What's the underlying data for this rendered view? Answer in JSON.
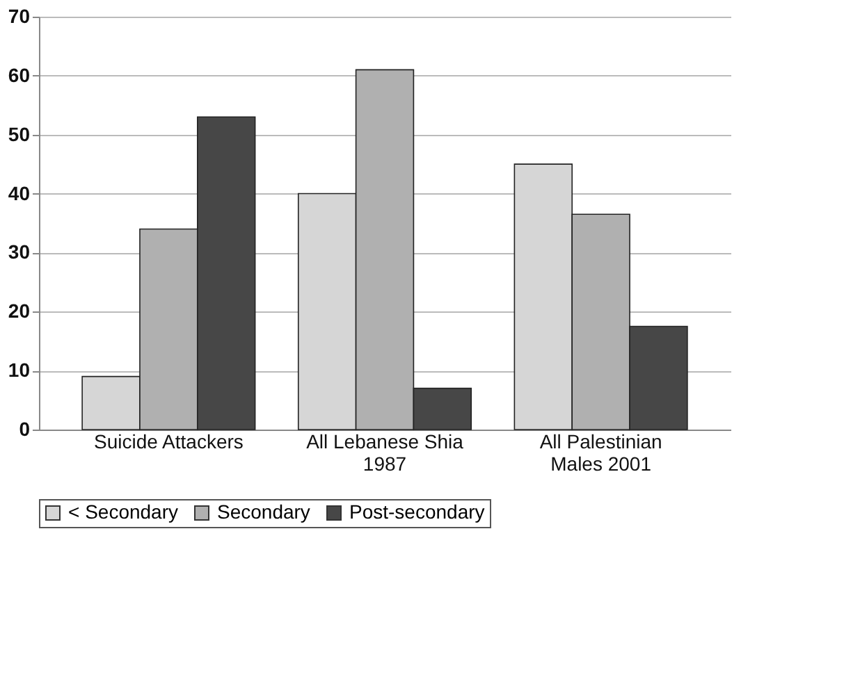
{
  "chart_data": {
    "type": "bar",
    "categories": [
      "Suicide Attackers",
      "All Lebanese Shia\n1987",
      "All Palestinian\nMales 2001"
    ],
    "series": [
      {
        "name": "< Secondary",
        "color": "#d6d6d6",
        "values": [
          9,
          40,
          45
        ]
      },
      {
        "name": "Secondary",
        "color": "#b0b0b0",
        "values": [
          34,
          61,
          36.5
        ]
      },
      {
        "name": "Post-secondary",
        "color": "#474747",
        "values": [
          53,
          7,
          17.5
        ]
      }
    ],
    "ylim": [
      0,
      70
    ],
    "yticks": [
      0,
      10,
      20,
      30,
      40,
      50,
      60,
      70
    ],
    "grid": "y",
    "legend": "bottom"
  }
}
